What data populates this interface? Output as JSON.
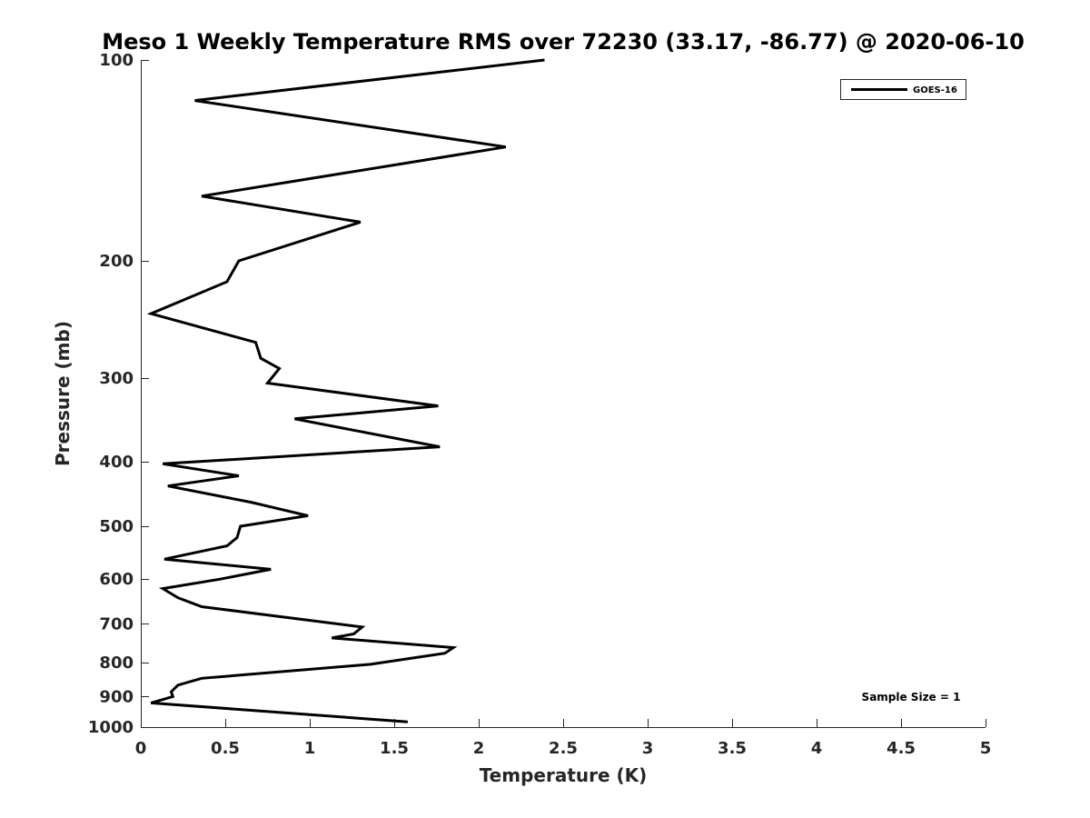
{
  "chart_data": {
    "type": "line",
    "title": "Meso 1 Weekly Temperature RMS over 72230 (33.17, -86.77) @ 2020-06-10",
    "xlabel": "Temperature (K)",
    "ylabel": "Pressure (mb)",
    "xlim": [
      0,
      5
    ],
    "ylim": [
      100,
      1000
    ],
    "yscale": "log",
    "y_reversed": true,
    "xticks": [
      "0",
      "0.5",
      "1",
      "1.5",
      "2",
      "2.5",
      "3",
      "3.5",
      "4",
      "4.5",
      "5"
    ],
    "xtick_values": [
      0,
      0.5,
      1,
      1.5,
      2,
      2.5,
      3,
      3.5,
      4,
      4.5,
      5
    ],
    "yticks": [
      "100",
      "200",
      "300",
      "400",
      "500",
      "600",
      "700",
      "800",
      "900",
      "1000"
    ],
    "ytick_values": [
      100,
      200,
      300,
      400,
      500,
      600,
      700,
      800,
      900,
      1000
    ],
    "grid": false,
    "legend_position": "top-right",
    "annotation": "Sample Size = 1",
    "series": [
      {
        "name": "GOES-16",
        "color": "#000000",
        "x": [
          2.39,
          0.32,
          2.16,
          0.36,
          1.3,
          0.58,
          0.51,
          0.06,
          0.68,
          0.71,
          0.82,
          0.75,
          1.76,
          0.91,
          1.77,
          0.13,
          0.58,
          0.16,
          0.65,
          0.99,
          0.59,
          0.57,
          0.51,
          0.14,
          0.77,
          0.47,
          0.13,
          0.22,
          0.36,
          1.31,
          1.26,
          1.13,
          1.85,
          1.8,
          1.36,
          0.36,
          0.22,
          0.18,
          0.19,
          0.06,
          1.58
        ],
        "y": [
          100,
          115,
          135,
          160,
          175,
          200,
          215,
          240,
          265,
          280,
          290,
          305,
          330,
          345,
          380,
          403,
          420,
          435,
          460,
          482,
          500,
          520,
          535,
          560,
          580,
          600,
          620,
          640,
          660,
          708,
          725,
          735,
          760,
          775,
          805,
          845,
          865,
          885,
          900,
          920,
          982
        ]
      }
    ]
  }
}
